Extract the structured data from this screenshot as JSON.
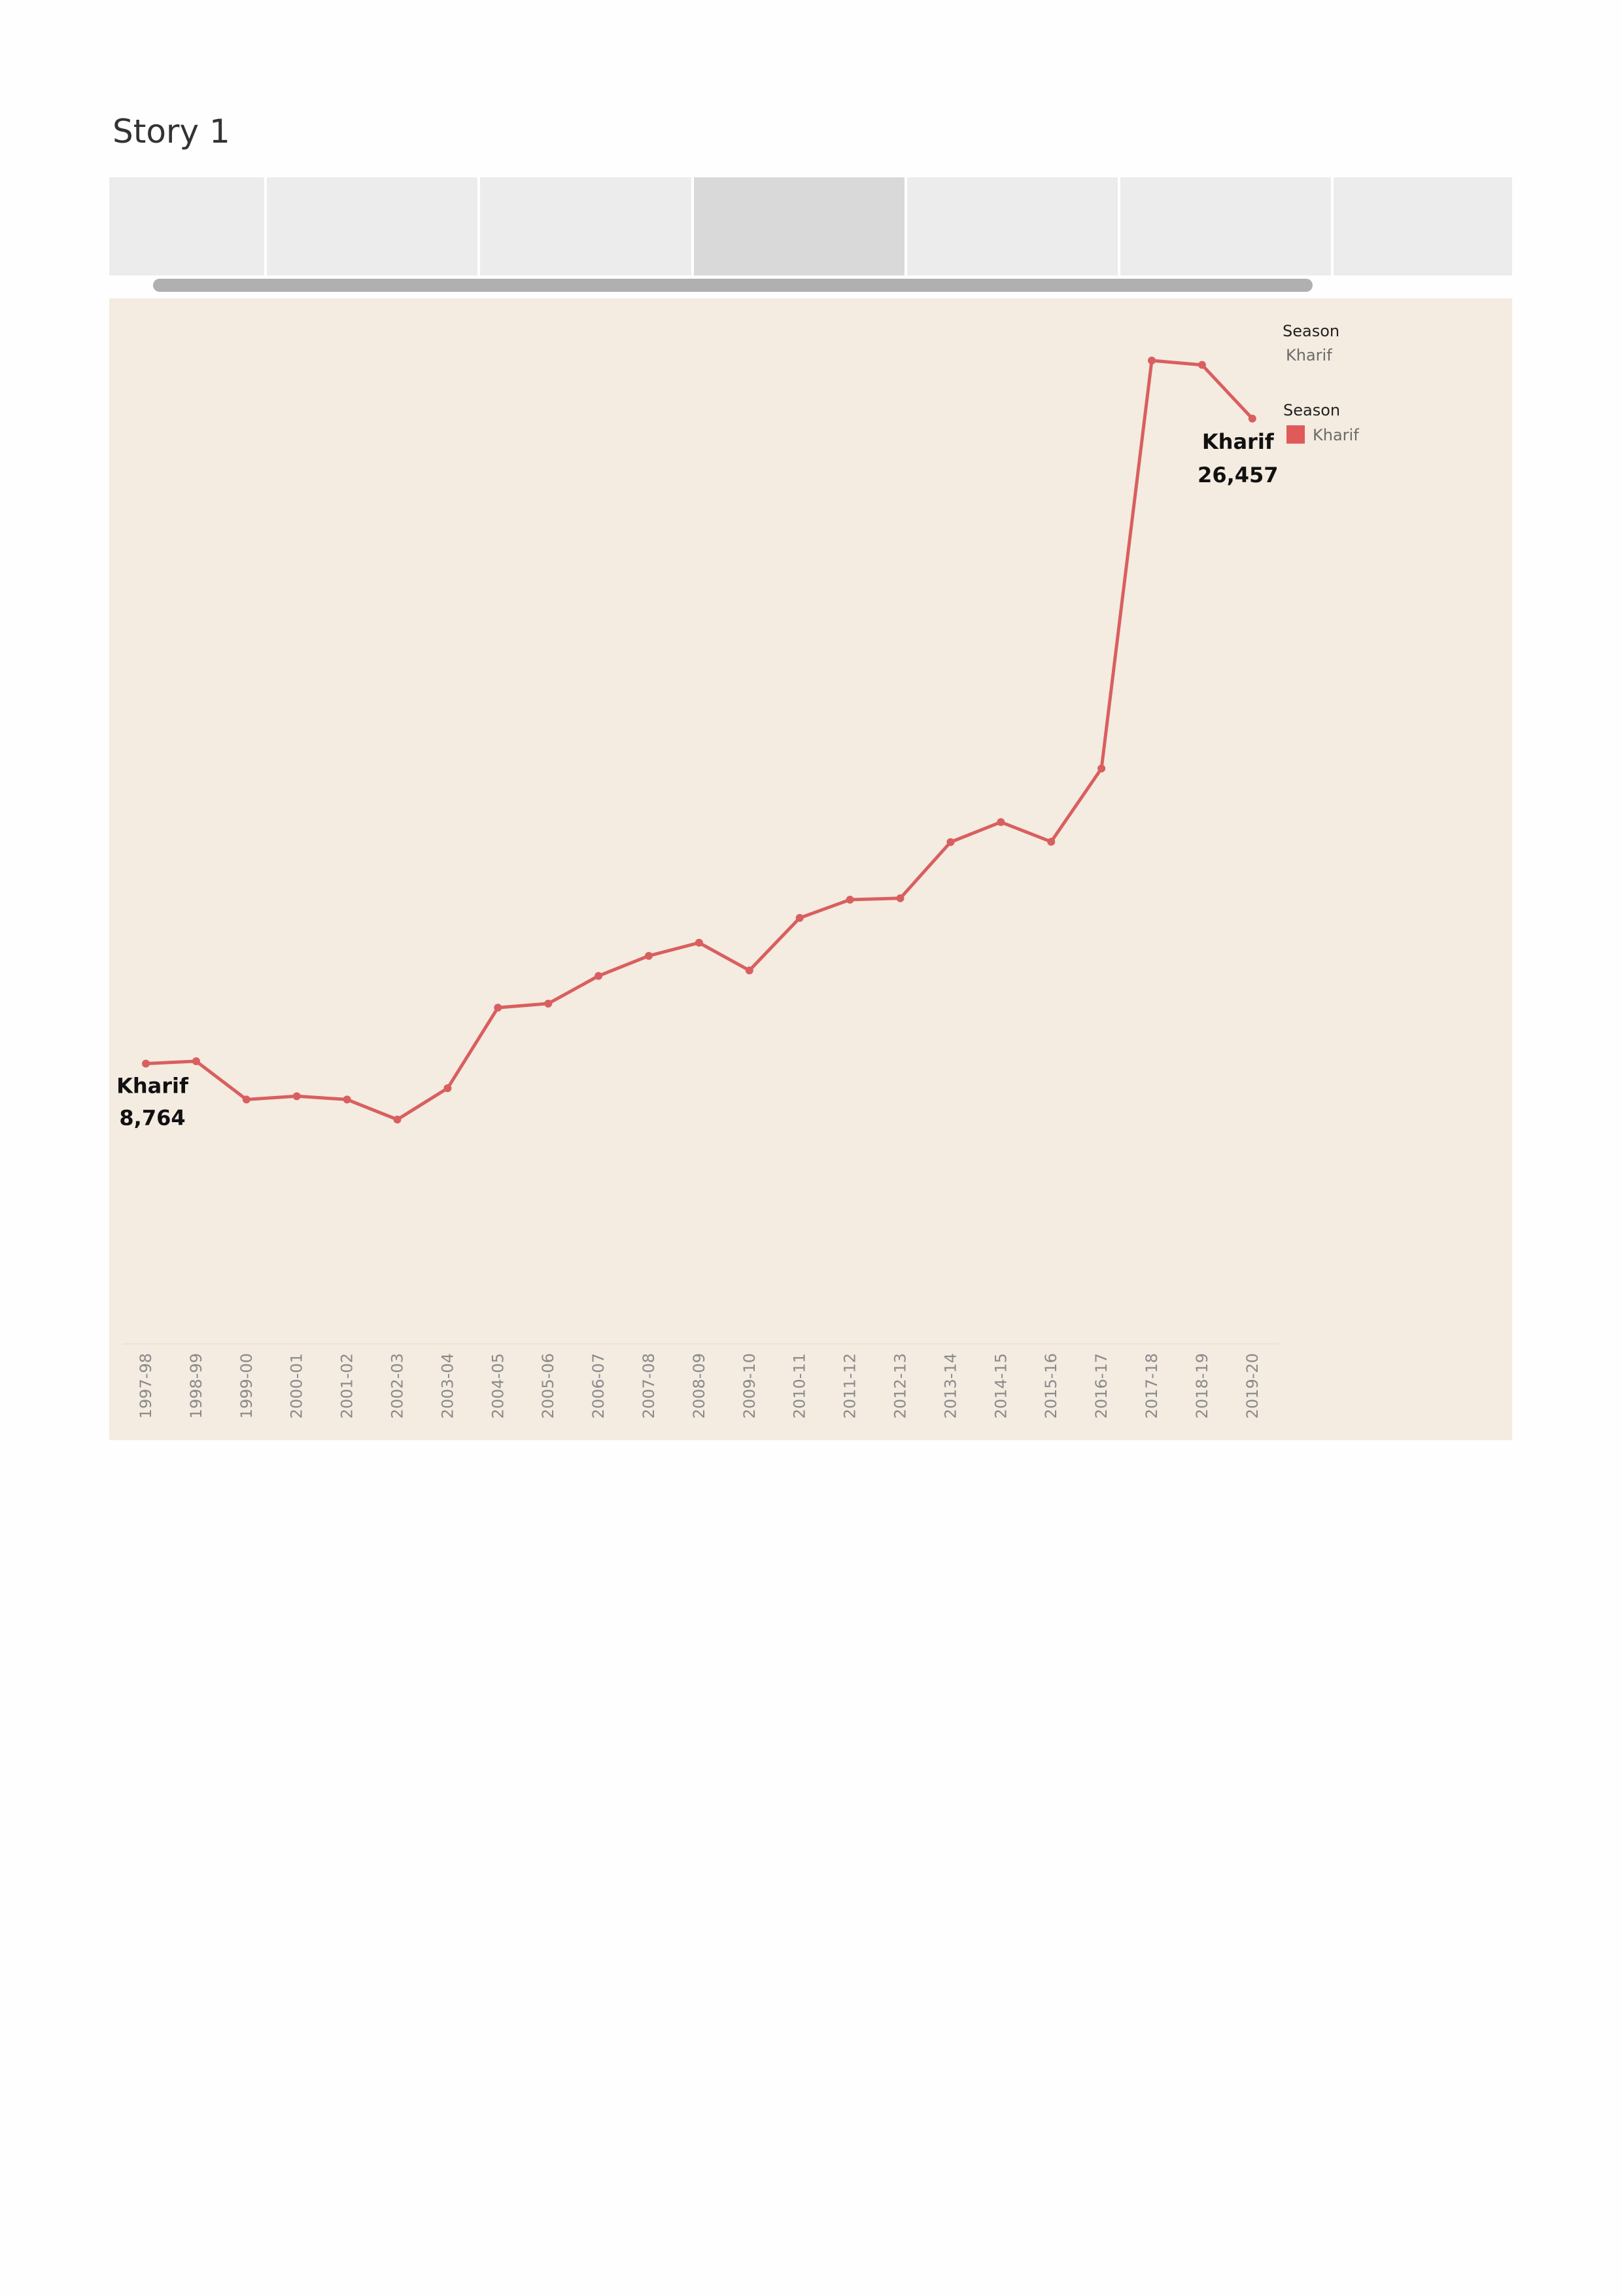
{
  "story": {
    "title": "Story 1",
    "active_point": 3,
    "point_count": 7
  },
  "filter_legend": {
    "title": "Season",
    "value": "Kharif"
  },
  "color_legend": {
    "title": "Season",
    "items": [
      {
        "label": "Kharif",
        "color": "#e05a5a"
      }
    ]
  },
  "colors": {
    "line": "#d95f5f",
    "dashboard_bg": "#f4ebe1",
    "axis_text": "#8a8a8a"
  },
  "chart_data": {
    "type": "line",
    "title": "",
    "xlabel": "",
    "ylabel": "",
    "categories": [
      "1997-98",
      "1998-99",
      "1999-00",
      "2000-01",
      "2001-02",
      "2002-03",
      "2003-04",
      "2004-05",
      "2005-06",
      "2006-07",
      "2007-08",
      "2008-09",
      "2009-10",
      "2010-11",
      "2011-12",
      "2012-13",
      "2013-14",
      "2014-15",
      "2015-16",
      "2016-17",
      "2017-18",
      "2018-19",
      "2019-20"
    ],
    "series": [
      {
        "name": "Kharif",
        "values": [
          8764,
          8830,
          7780,
          7870,
          7780,
          7230,
          8090,
          10300,
          10410,
          11170,
          11720,
          12080,
          11320,
          12760,
          13260,
          13300,
          14840,
          15390,
          14850,
          16860,
          28050,
          27930,
          26457
        ]
      }
    ],
    "ylim": [
      0,
      30000
    ],
    "grid": false,
    "axes_visible": {
      "x": true,
      "y": false
    },
    "annotations": [
      {
        "category": "1997-98",
        "label": "Kharif",
        "value_text": "8,764"
      },
      {
        "category": "2019-20",
        "label": "Kharif",
        "value_text": "26,457"
      }
    ],
    "legend_position": "top-right"
  }
}
